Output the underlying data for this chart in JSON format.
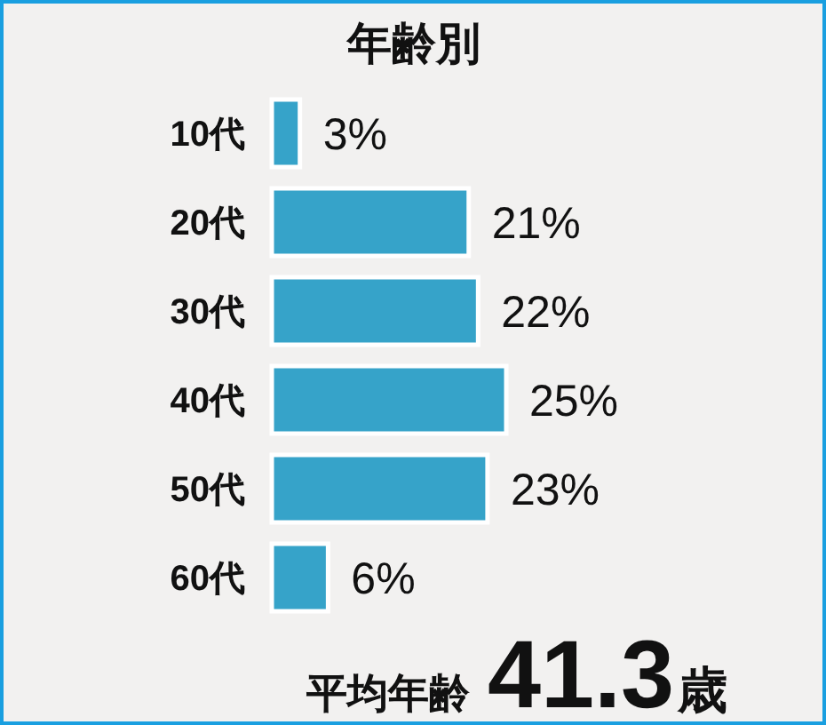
{
  "chart_data": {
    "type": "bar",
    "orientation": "horizontal",
    "title": "年齢別",
    "categories": [
      "10代",
      "20代",
      "30代",
      "40代",
      "50代",
      "60代"
    ],
    "values": [
      3,
      21,
      22,
      25,
      23,
      6
    ],
    "value_labels": [
      "3%",
      "21%",
      "22%",
      "25%",
      "23%",
      "6%"
    ],
    "color": "#36a3c9",
    "annotations": [
      "平均年齢41.3歳"
    ]
  }
}
